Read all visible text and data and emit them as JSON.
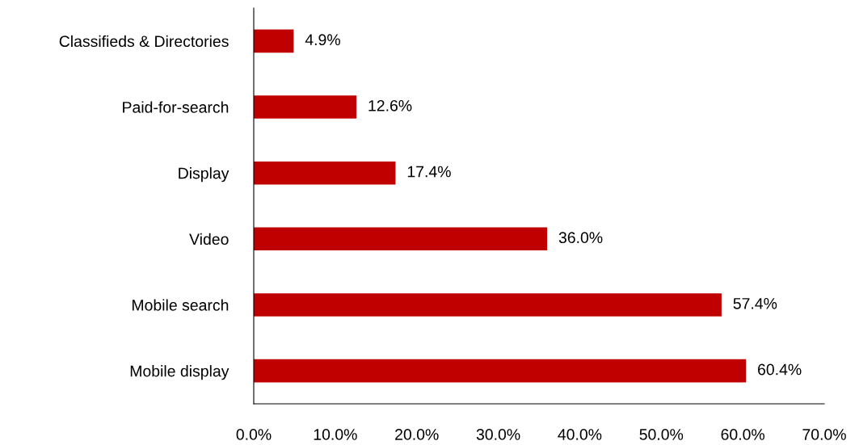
{
  "chart_data": {
    "type": "bar",
    "orientation": "horizontal",
    "categories": [
      "Classifieds & Directories",
      "Paid-for-search",
      "Display",
      "Video",
      "Mobile search",
      "Mobile display"
    ],
    "values": [
      4.9,
      12.6,
      17.4,
      36.0,
      57.4,
      60.4
    ],
    "value_labels": [
      "4.9%",
      "12.6%",
      "17.4%",
      "36.0%",
      "57.4%",
      "60.4%"
    ],
    "color": "#c00000",
    "xlim": [
      0,
      70
    ],
    "xticks": [
      {
        "value": 0,
        "label": "0.0%"
      },
      {
        "value": 10,
        "label": "10.0%"
      },
      {
        "value": 20,
        "label": "20.0%"
      },
      {
        "value": 30,
        "label": "30.0%"
      },
      {
        "value": 40,
        "label": "40.0%"
      },
      {
        "value": 50,
        "label": "50.0%"
      },
      {
        "value": 60,
        "label": "60.0%"
      },
      {
        "value": 70,
        "label": "70.0%"
      }
    ],
    "grid": false,
    "legend": false
  }
}
